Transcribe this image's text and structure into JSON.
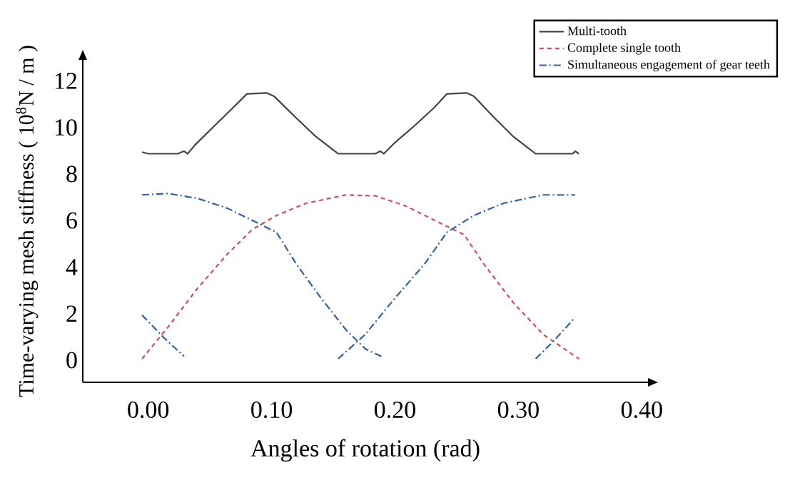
{
  "chart_data": {
    "type": "line",
    "xlabel": "Angles of rotation (rad)",
    "ylabel": "Time-varying mesh stiffness ( 10$^{8}$N / m )",
    "xlim": [
      -0.053,
      0.405
    ],
    "ylim": [
      -0.95,
      12.9
    ],
    "xticks": [
      {
        "value": 0,
        "label": "0.00"
      },
      {
        "value": 0.1,
        "label": "0.10"
      },
      {
        "value": 0.2,
        "label": "0.20"
      },
      {
        "value": 0.3,
        "label": "0.30"
      },
      {
        "value": 0.4,
        "label": "0.40"
      }
    ],
    "yticks": [
      0,
      2,
      4,
      6,
      8,
      10,
      12
    ],
    "legend": "top right",
    "marker": "none",
    "series": [
      {
        "name": "Multi-tooth",
        "color": "#444444",
        "line_style": "solid",
        "x": [
          -0.005,
          0,
          0.024,
          0.029,
          0.032,
          0.038,
          0.052,
          0.068,
          0.08,
          0.096,
          0.102,
          0.12,
          0.136,
          0.154,
          0.184,
          0.188,
          0.191,
          0.2,
          0.216,
          0.232,
          0.242,
          0.258,
          0.264,
          0.28,
          0.296,
          0.314,
          0.344,
          0.346,
          0.349
        ],
        "values": [
          8.94,
          8.87,
          8.87,
          8.98,
          8.87,
          9.25,
          9.98,
          10.81,
          11.44,
          11.48,
          11.34,
          10.4,
          9.6,
          8.87,
          8.87,
          8.98,
          8.87,
          9.35,
          10.08,
          10.86,
          11.44,
          11.48,
          11.34,
          10.44,
          9.6,
          8.87,
          8.87,
          8.98,
          8.87
        ]
      },
      {
        "name": "Complete single tooth",
        "color": "#d0505a",
        "line_style": "dashed",
        "x": [
          -0.005,
          0.016,
          0.04,
          0.064,
          0.084,
          0.104,
          0.128,
          0.16,
          0.184,
          0.208,
          0.232,
          0.256,
          0.272,
          0.296,
          0.32,
          0.349
        ],
        "values": [
          0.06,
          1.42,
          3.09,
          4.55,
          5.6,
          6.22,
          6.74,
          7.1,
          7.06,
          6.64,
          6.01,
          5.39,
          4.13,
          2.46,
          1.11,
          0.06
        ]
      },
      {
        "name": "Simultaneous engagement of gear teeth",
        "color": "#2f5fa8",
        "line_style": "dashdot",
        "x": [
          -0.005,
          0.016,
          0.04,
          0.064,
          0.088,
          0.104,
          0.12,
          0.14,
          0.16,
          0.176,
          0.19,
          null,
          -0.005,
          0.012,
          0.029,
          null,
          0.154,
          0.176,
          0.2,
          0.224,
          0.242,
          0.264,
          0.288,
          0.32,
          0.346,
          null,
          0.314,
          0.328,
          0.346
        ],
        "values": [
          7.1,
          7.16,
          6.95,
          6.53,
          5.91,
          5.49,
          4.13,
          2.67,
          1.32,
          0.48,
          0.13,
          null,
          1.94,
          1.0,
          0.17,
          null,
          0.06,
          1.11,
          2.67,
          4.13,
          5.49,
          6.22,
          6.74,
          7.1,
          7.1,
          null,
          0.06,
          0.79,
          1.84
        ]
      }
    ]
  }
}
